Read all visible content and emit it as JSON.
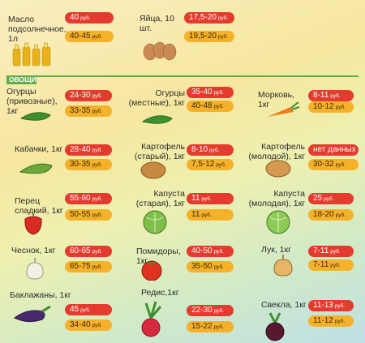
{
  "top": {
    "oil": {
      "name": "Масло\nподсолнечное,\n1л",
      "price_min": "40",
      "price_max": "40-45",
      "rub": "руб."
    },
    "eggs": {
      "name": "Яйца, 10 шт.",
      "price_min": "17,5-20",
      "price_max": "19,5-20",
      "rub": "руб."
    }
  },
  "section_label": "ОВОЩИ",
  "vegetables": [
    {
      "key": "cucumber_imported",
      "name": "Огурцы\n(привозные), 1кг",
      "price_min": "24-30",
      "price_max": "33-35",
      "rub": "руб."
    },
    {
      "key": "cucumber_local",
      "name": "Огурцы\n(местные), 1кг",
      "price_min": "35-40",
      "price_max": "40-48",
      "rub": "руб."
    },
    {
      "key": "carrot",
      "name": "Морковь, 1кг",
      "price_min": "8-11",
      "price_max": "10-12",
      "rub": "руб."
    },
    {
      "key": "zucchini",
      "name": "Кабачки, 1кг",
      "price_min": "28-40",
      "price_max": "30-35",
      "rub": "руб."
    },
    {
      "key": "potato_old",
      "name": "Картофель\n(старый), 1кг",
      "price_min": "8-10",
      "price_max": "7,5-12",
      "rub": "руб."
    },
    {
      "key": "potato_young",
      "name": "Картофель\n(молодой), 1кг",
      "price_min": "нет данных",
      "price_max": "30-32",
      "rub": "руб."
    },
    {
      "key": "pepper",
      "name": "Перец\nсладкий, 1кг",
      "price_min": "55-60",
      "price_max": "50-55",
      "rub": "руб."
    },
    {
      "key": "cabbage_old",
      "name": "Капуста\n(старая), 1кг",
      "price_min": "11",
      "price_max": "11",
      "rub": "руб."
    },
    {
      "key": "cabbage_young",
      "name": "Капуста\n(молодая), 1кг",
      "price_min": "25",
      "price_max": "18-20",
      "rub": "руб."
    },
    {
      "key": "garlic",
      "name": "Чеснок, 1кг",
      "price_min": "60-65",
      "price_max": "65-75",
      "rub": "руб."
    },
    {
      "key": "tomato",
      "name": "Помидоры, 1кг",
      "price_min": "40-50",
      "price_max": "35-50",
      "rub": "руб."
    },
    {
      "key": "onion",
      "name": "Лук, 1кг",
      "price_min": "7-11",
      "price_max": "7-11",
      "rub": "руб."
    },
    {
      "key": "eggplant",
      "name": "Баклажаны, 1кг",
      "price_min": "45",
      "price_max": "34-40",
      "rub": "руб."
    },
    {
      "key": "radish",
      "name": "Редис,1кг",
      "price_min": "22-30",
      "price_max": "15-22",
      "rub": "руб."
    },
    {
      "key": "beet",
      "name": "Свекла, 1кг",
      "price_min": "11-13",
      "price_max": "11-12",
      "rub": "руб."
    }
  ],
  "colors": {
    "price_min": "#e53a2e",
    "price_max": "#f6b12b",
    "section": "#5fae4a"
  }
}
